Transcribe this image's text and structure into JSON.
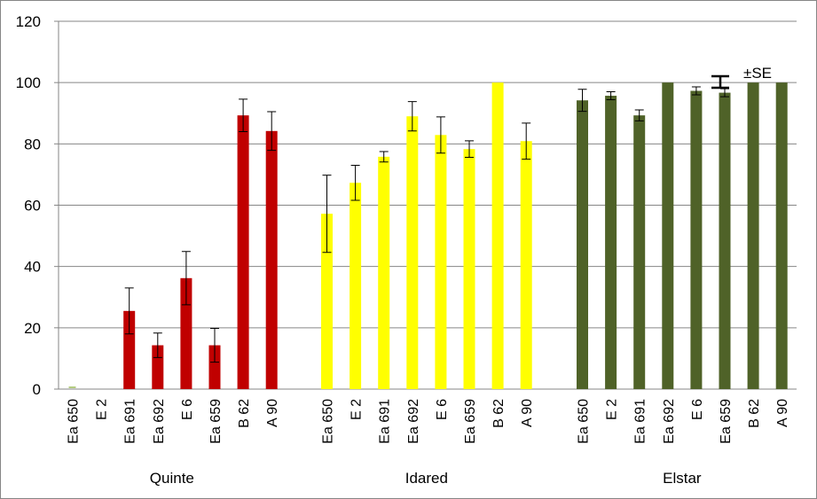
{
  "chart_data": {
    "type": "bar",
    "title": "",
    "xlabel": "",
    "ylabel": "",
    "ylim": [
      0,
      120
    ],
    "yticks": [
      0,
      20,
      40,
      60,
      80,
      100,
      120
    ],
    "grid": true,
    "legend": "none",
    "error_legend_label": "±SE",
    "groups": [
      {
        "name": "Quinte",
        "color": "#c00000",
        "categories": [
          "Ea 650",
          "E 2",
          "Ea 691",
          "Ea 692",
          "E 6",
          "Ea 659",
          "B 62",
          "A 90"
        ],
        "values": [
          0,
          0,
          25.5,
          14.3,
          36.2,
          14.3,
          89.3,
          84.2
        ],
        "errors": [
          0,
          0,
          7.5,
          4.0,
          8.7,
          5.5,
          5.3,
          6.3
        ]
      },
      {
        "name": "Idared",
        "color": "#ffff00",
        "categories": [
          "Ea 650",
          "E 2",
          "Ea 691",
          "Ea 692",
          "E 6",
          "Ea 659",
          "B 62",
          "A 90"
        ],
        "values": [
          57.2,
          67.3,
          75.8,
          89.0,
          82.9,
          78.3,
          100,
          80.9
        ],
        "errors": [
          12.6,
          5.7,
          1.7,
          4.8,
          5.9,
          2.7,
          0,
          5.9
        ]
      },
      {
        "name": "Elstar",
        "color": "#4f6228",
        "categories": [
          "Ea 650",
          "E 2",
          "Ea 691",
          "Ea 692",
          "E 6",
          "Ea 659",
          "B 62",
          "A 90"
        ],
        "values": [
          94.2,
          95.7,
          89.3,
          100,
          97.3,
          96.7,
          100,
          100
        ],
        "errors": [
          3.6,
          1.3,
          1.8,
          0,
          1.3,
          1.3,
          0,
          0
        ]
      }
    ]
  }
}
